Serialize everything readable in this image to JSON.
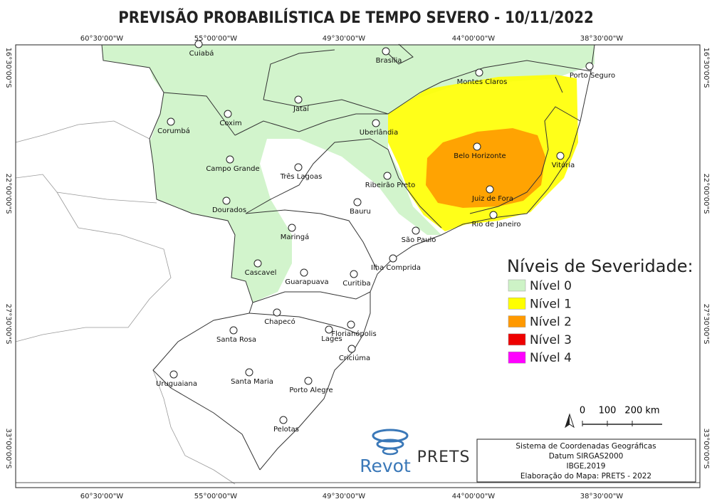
{
  "title": "PREVISÃO PROBABILÍSTICA DE TEMPO SEVERO - 10/11/2022",
  "grid_labels": {
    "longitude": [
      "60°30'00\"W",
      "55°00'00\"W",
      "49°30'00\"W",
      "44°00'00\"W",
      "38°30'00\"W"
    ],
    "latitude": [
      "16°30'00\"S",
      "22°00'00\"S",
      "27°30'00\"S",
      "33°00'00\"S"
    ]
  },
  "cities": [
    "Cuiabá",
    "Brasília",
    "Porto Seguro",
    "Montes Claros",
    "Jataí",
    "Corumbá",
    "Coxim",
    "Uberlândia",
    "Belo Horizonte",
    "Vitória",
    "Campo Grande",
    "Três Lagoas",
    "Ribeirão Preto",
    "Juiz de Fora",
    "Dourados",
    "Bauru",
    "Rio de Janeiro",
    "Maringá",
    "São Paulo",
    "Ilha Comprida",
    "Cascavel",
    "Guarapuava",
    "Curitiba",
    "Chapecó",
    "Florianópolis",
    "Santa Rosa",
    "Lages",
    "Criciúma",
    "Uruguaiana",
    "Santa Maria",
    "Porto Alegre",
    "Pelotas"
  ],
  "legend": {
    "title": "Níveis de Severidade:",
    "items": [
      {
        "label": "Nível 0",
        "color": "#cdf3c6"
      },
      {
        "label": "Nível 1",
        "color": "#ffff00"
      },
      {
        "label": "Nível 2",
        "color": "#ff9900"
      },
      {
        "label": "Nível 3",
        "color": "#ee0000"
      },
      {
        "label": "Nível 4",
        "color": "#ff00ff"
      }
    ]
  },
  "scale_bar": {
    "labels": [
      "0",
      "100",
      "200 km"
    ]
  },
  "logos": {
    "revot": "Revot",
    "prets": "PRETS"
  },
  "info_box": {
    "lines": [
      "Sistema de Coordenadas Geográficas",
      "Datum SIRGAS2000",
      "IBGE,2019",
      "Elaboração do Mapa: PRETS - 2022"
    ]
  }
}
